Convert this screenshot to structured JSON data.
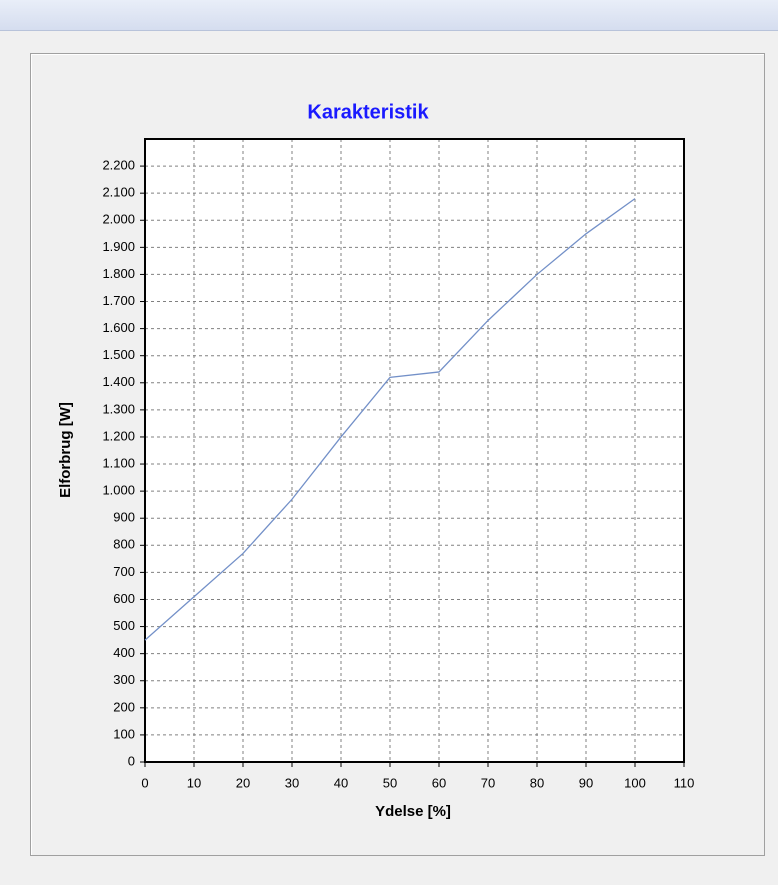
{
  "chart_data": {
    "type": "line",
    "title": "Karakteristik",
    "xlabel": "Ydelse [%]",
    "ylabel": "Elforbrug [W]",
    "x": [
      0,
      10,
      20,
      30,
      40,
      50,
      60,
      70,
      80,
      90,
      100
    ],
    "series": [
      {
        "name": "Elforbrug",
        "color": "#7390c8",
        "values": [
          450,
          610,
          770,
          970,
          1200,
          1420,
          1440,
          1630,
          1800,
          1950,
          2080
        ]
      }
    ],
    "xlim": [
      0,
      110
    ],
    "xticks": [
      0,
      10,
      20,
      30,
      40,
      50,
      60,
      70,
      80,
      90,
      100,
      110
    ],
    "ylim": [
      0,
      2300
    ],
    "yticks": [
      0,
      100,
      200,
      300,
      400,
      500,
      600,
      700,
      800,
      900,
      {
        "value": 1000,
        "label": "1.000"
      },
      {
        "value": 1100,
        "label": "1.100"
      },
      {
        "value": 1200,
        "label": "1.200"
      },
      {
        "value": 1300,
        "label": "1.300"
      },
      {
        "value": 1400,
        "label": "1.400"
      },
      {
        "value": 1500,
        "label": "1.500"
      },
      {
        "value": 1600,
        "label": "1.600"
      },
      {
        "value": 1700,
        "label": "1.700"
      },
      {
        "value": 1800,
        "label": "1.800"
      },
      {
        "value": 1900,
        "label": "1.900"
      },
      {
        "value": 2000,
        "label": "2.000"
      },
      {
        "value": 2100,
        "label": "2.100"
      },
      {
        "value": 2200,
        "label": "2.200"
      }
    ],
    "grid": true
  }
}
